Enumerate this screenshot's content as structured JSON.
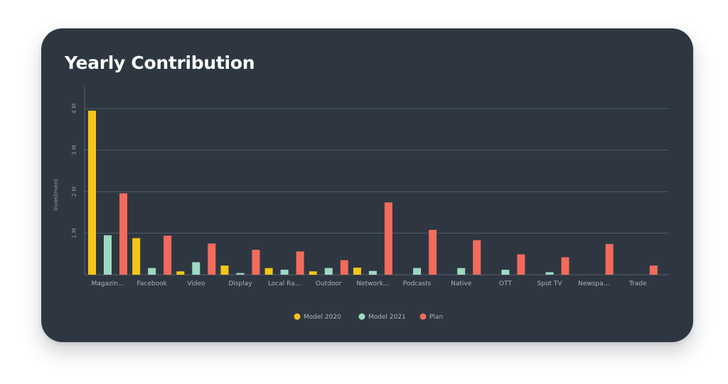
{
  "title": "Yearly Contribution",
  "chart_data": {
    "type": "bar",
    "title": "Yearly Contribution",
    "xlabel": "",
    "ylabel": "Investment",
    "ylim": [
      0,
      4200000
    ],
    "yticks": [
      1000000,
      2000000,
      3000000,
      4000000
    ],
    "ytick_labels": [
      "1 M",
      "2 M",
      "3 M",
      "4 M"
    ],
    "grid": true,
    "legend_position": "bottom",
    "categories": [
      "Magazin...",
      "Facebook",
      "Video",
      "Display",
      "Local Ra...",
      "Outdoor",
      "Network...",
      "Podcasts",
      "Native",
      "OTT",
      "Spot TV",
      "Newspa...",
      "Trade"
    ],
    "series": [
      {
        "name": "Model 2020",
        "color": "#f5c518",
        "values": [
          3950000,
          880000,
          80000,
          220000,
          160000,
          80000,
          170000,
          0,
          0,
          0,
          0,
          0,
          0
        ]
      },
      {
        "name": "Model 2021",
        "color": "#9ed9c3",
        "values": [
          950000,
          160000,
          300000,
          40000,
          120000,
          160000,
          90000,
          160000,
          160000,
          120000,
          60000,
          0,
          0
        ]
      },
      {
        "name": "Plan",
        "color": "#f26b5b",
        "values": [
          1960000,
          940000,
          750000,
          600000,
          560000,
          350000,
          1740000,
          1080000,
          830000,
          490000,
          420000,
          740000,
          220000
        ]
      }
    ]
  }
}
